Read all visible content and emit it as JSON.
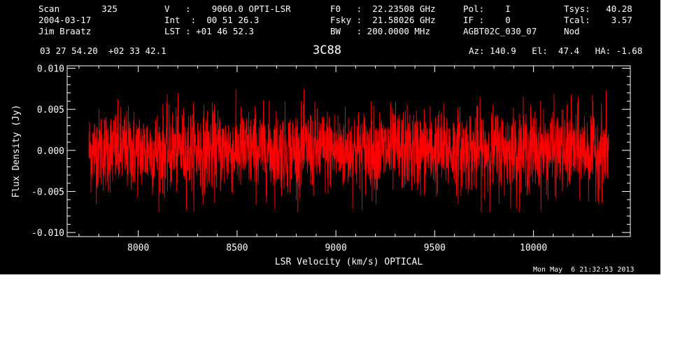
{
  "header": {
    "col1": {
      "scan": "Scan        325",
      "date": "2004-03-17",
      "observer": "Jim Braatz"
    },
    "col2": {
      "vel": "V   :    9060.0 OPTI-LSR",
      "int": "Int  :  00 51 26.3",
      "lst": "LST : +01 46 52.3"
    },
    "col3": {
      "f0": "F0   :  22.23508 GHz",
      "fsky": "Fsky :  21.58026 GHz",
      "bw": "BW   : 200.0000 MHz"
    },
    "col4": {
      "pol": "Pol:    I",
      "if": "IF :    0",
      "project": "AGBT02C_030_07"
    },
    "col5": {
      "tsys": "Tsys:   40.28",
      "tcal": "Tcal:    3.57",
      "mode": "Nod"
    },
    "coords": "03 27 54.20  +02 33 42.1",
    "source": "3C88",
    "azel": "Az: 140.9   El:  47.4   HA: -1.68",
    "timestamp": "Mon May  6 21:32:53 2013"
  },
  "colors": {
    "background": "#000000",
    "trace": "#ff0000",
    "axes": "#ffffff",
    "page": "#ffffff"
  },
  "chart_data": {
    "type": "line",
    "title": "3C88",
    "xlabel": "LSR Velocity (km/s) OPTICAL",
    "ylabel": "Flux Density (Jy)",
    "xlim": [
      7640,
      10490
    ],
    "ylim": [
      -0.0105,
      0.0103
    ],
    "x_ticks": [
      8000,
      8500,
      9000,
      9500,
      10000
    ],
    "x_tick_labels": [
      "8000",
      "8500",
      "9000",
      "9500",
      "10000"
    ],
    "y_ticks": [
      -0.01,
      -0.005,
      0.0,
      0.005,
      0.01
    ],
    "y_tick_labels": [
      "-0.010",
      "-0.005",
      "0.000",
      "0.005",
      "0.010"
    ],
    "grid": false,
    "legend": "none",
    "series": [
      {
        "x_range": [
          7750,
          10380
        ],
        "y_mean": 0.0,
        "y_rms": 0.0025,
        "y_min": -0.0075,
        "y_max": 0.0075,
        "description": "noise-dominated spectrum, red trace"
      }
    ]
  }
}
